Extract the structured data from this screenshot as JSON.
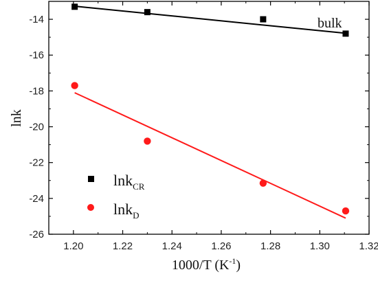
{
  "chart_data": {
    "type": "scatter",
    "xlabel": "1000/T (K",
    "xlabel_sup": "-1",
    "xlabel_close": ")",
    "ylabel": "lnk",
    "xlim": [
      1.19,
      1.32
    ],
    "ylim": [
      -26,
      -13
    ],
    "xticks": [
      1.2,
      1.22,
      1.24,
      1.26,
      1.28,
      1.3,
      1.32
    ],
    "xtick_labels": [
      "1.20",
      "1.22",
      "1.24",
      "1.26",
      "1.28",
      "1.30",
      "1.32"
    ],
    "yticks": [
      -26,
      -24,
      -22,
      -20,
      -18,
      -16,
      -14
    ],
    "ytick_labels": [
      "-26",
      "-24",
      "-22",
      "-20",
      "-18",
      "-16",
      "-14"
    ],
    "grid": false,
    "legend_position": "bottom-left",
    "annotation": "bulk",
    "series": [
      {
        "name": "lnk",
        "name_sub": "CR",
        "marker": "square",
        "color": "#000000",
        "x": [
          1.2005,
          1.23,
          1.277,
          1.3105
        ],
        "y": [
          -13.3,
          -13.6,
          -14.0,
          -14.8
        ],
        "fit": [
          [
            1.2005,
            -13.27
          ],
          [
            1.3105,
            -14.78
          ]
        ]
      },
      {
        "name": "lnk",
        "name_sub": "D",
        "marker": "circle",
        "color": "#ff1a1a",
        "x": [
          1.2005,
          1.23,
          1.277,
          1.3105
        ],
        "y": [
          -17.7,
          -20.8,
          -23.15,
          -24.7
        ],
        "fit": [
          [
            1.2005,
            -18.1
          ],
          [
            1.3105,
            -25.1
          ]
        ]
      }
    ]
  }
}
